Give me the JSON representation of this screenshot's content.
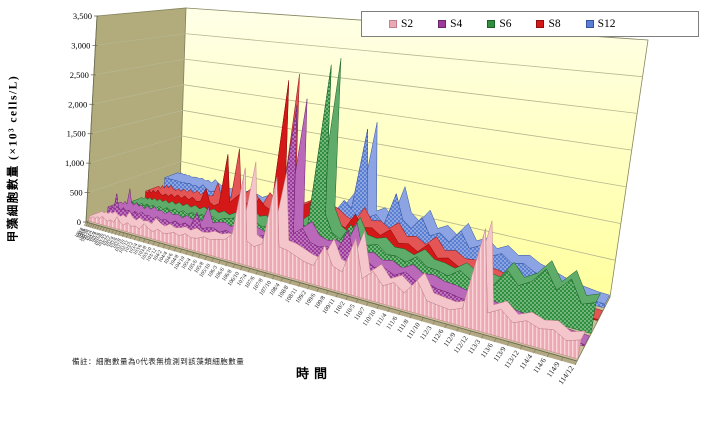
{
  "y_axis": {
    "label": "甲藻細胞數量 (×10³ cells/L)"
  },
  "x_axis": {
    "label": "時間"
  },
  "footnote": "備註：細胞數量為0代表無檢測到該藻類細胞數量",
  "colors": {
    "back_wall_top": "#ffffe8",
    "back_wall_bottom": "#ffff9e",
    "side_wall": "#b2ac7c",
    "floor": "#cbc09a",
    "grid_line": "#b6b68f",
    "axis_line": "#6b6b52"
  },
  "chart_data": {
    "type": "line",
    "subtype": "excel-3d-ribbon",
    "title": "",
    "xlabel": "時間",
    "ylabel": "甲藻細胞數量 (×10³ cells/L)",
    "ylim": [
      0,
      3500
    ],
    "y_ticks": [
      "0",
      "500",
      "1,000",
      "1,500",
      "2,000",
      "2,500",
      "3,000",
      "3,500"
    ],
    "grid": true,
    "legend_position": "top-right",
    "categories": [
      "100/4",
      "100/6",
      "100/8",
      "100/10",
      "100/12",
      "101/2",
      "101/4",
      "101/6",
      "101/8",
      "101/10",
      "101/12",
      "102/2",
      "102/4",
      "102/6",
      "102/8",
      "102/10",
      "102/12",
      "103/2",
      "103/4",
      "103/6",
      "103/8",
      "103/10",
      "103/12",
      "104/2",
      "104/4",
      "104/6",
      "104/8",
      "104/10",
      "105/4",
      "105/6",
      "105/8",
      "105/10",
      "106/3",
      "106/6",
      "106/8",
      "106/10",
      "107/4",
      "107/6",
      "107/8",
      "107/10",
      "108/4",
      "108/8",
      "108/11",
      "109/2",
      "109/6",
      "109/8",
      "109/11",
      "110/2",
      "110/5",
      "110/7",
      "110/10",
      "111/4",
      "111/6",
      "111/8",
      "111/10",
      "112/3",
      "112/6",
      "112/9",
      "112/12",
      "113/3",
      "113/6",
      "113/9",
      "113/12",
      "114/4",
      "114/6",
      "114/9",
      "114/12"
    ],
    "series": [
      {
        "name": "S2",
        "color": "#eda9b3",
        "top": "#f4c5cb",
        "dark": "#c2808c",
        "accent": "#f8d4d9",
        "pattern": "stripes",
        "values": [
          80,
          60,
          90,
          70,
          110,
          90,
          140,
          100,
          80,
          120,
          90,
          200,
          120,
          90,
          150,
          110,
          130,
          100,
          210,
          150,
          120,
          180,
          140,
          160,
          200,
          170,
          230,
          190,
          210,
          260,
          240,
          280,
          300,
          420,
          1500,
          380,
          320,
          400,
          1470,
          420,
          400,
          350,
          300,
          280,
          620,
          350,
          300,
          850,
          280,
          430,
          260,
          350,
          240,
          470,
          220,
          200,
          180,
          250,
          1430,
          280,
          380,
          240,
          320,
          260,
          300,
          200,
          260
        ]
      },
      {
        "name": "S4",
        "color": "#9c3a9c",
        "top": "#ba68ba",
        "dark": "#6b236b",
        "accent": "#ebcbeb",
        "pattern": "dots",
        "values": [
          120,
          90,
          150,
          110,
          380,
          160,
          120,
          180,
          130,
          160,
          110,
          170,
          130,
          190,
          140,
          160,
          120,
          180,
          140,
          170,
          130,
          190,
          150,
          200,
          160,
          420,
          180,
          220,
          240,
          200,
          260,
          220,
          280,
          300,
          260,
          320,
          380,
          520,
          2450,
          480,
          600,
          420,
          380,
          420,
          360,
          750,
          320,
          380,
          300,
          330,
          260,
          350,
          260,
          280,
          230,
          220,
          190,
          180,
          150,
          120,
          100,
          80,
          60,
          50,
          40,
          30,
          20
        ]
      },
      {
        "name": "S6",
        "color": "#2f8f3f",
        "top": "#5fac6a",
        "dark": "#1d5f28",
        "accent": "#d5edd5",
        "pattern": "dots",
        "values": [
          60,
          90,
          70,
          110,
          80,
          120,
          90,
          130,
          100,
          140,
          110,
          150,
          110,
          160,
          120,
          170,
          130,
          180,
          140,
          190,
          150,
          200,
          160,
          210,
          170,
          220,
          180,
          240,
          260,
          300,
          380,
          280,
          320,
          260,
          300,
          340,
          450,
          380,
          500,
          420,
          2980,
          700,
          450,
          380,
          650,
          420,
          400,
          450,
          340,
          350,
          300,
          420,
          310,
          300,
          260,
          380,
          290,
          330,
          300,
          550,
          380,
          480,
          700,
          450,
          650,
          350,
          420
        ]
      },
      {
        "name": "S8",
        "color": "#d41717",
        "top": "#e45555",
        "dark": "#8f0d0d",
        "accent": "#d41717",
        "pattern": "solid",
        "values": [
          150,
          120,
          180,
          140,
          200,
          160,
          220,
          170,
          150,
          190,
          160,
          210,
          170,
          230,
          180,
          240,
          190,
          250,
          200,
          220,
          450,
          240,
          200,
          260,
          1080,
          320,
          420,
          520,
          380,
          300,
          500,
          400,
          360,
          2450,
          380,
          450,
          520,
          600,
          700,
          550,
          500,
          420,
          380,
          620,
          450,
          480,
          400,
          520,
          350,
          380,
          300,
          450,
          280,
          320,
          240,
          260,
          200,
          200,
          160,
          120,
          100,
          80,
          60,
          40,
          30,
          20,
          15
        ]
      },
      {
        "name": "S12",
        "color": "#5a7ed2",
        "top": "#8ca4e4",
        "dark": "#35529e",
        "accent": "#d6dff6",
        "pattern": "dots",
        "values": [
          260,
          250,
          270,
          255,
          265,
          250,
          260,
          245,
          255,
          260,
          250,
          270,
          240,
          260,
          230,
          300,
          250,
          220,
          240,
          210,
          230,
          200,
          220,
          240,
          210,
          230,
          200,
          250,
          220,
          240,
          210,
          260,
          230,
          250,
          220,
          270,
          300,
          350,
          320,
          400,
          600,
          500,
          1750,
          420,
          500,
          380,
          880,
          520,
          420,
          620,
          380,
          460,
          360,
          560,
          340,
          420,
          300,
          380,
          280,
          320,
          240,
          200,
          150,
          100,
          80,
          60,
          50
        ]
      }
    ]
  }
}
